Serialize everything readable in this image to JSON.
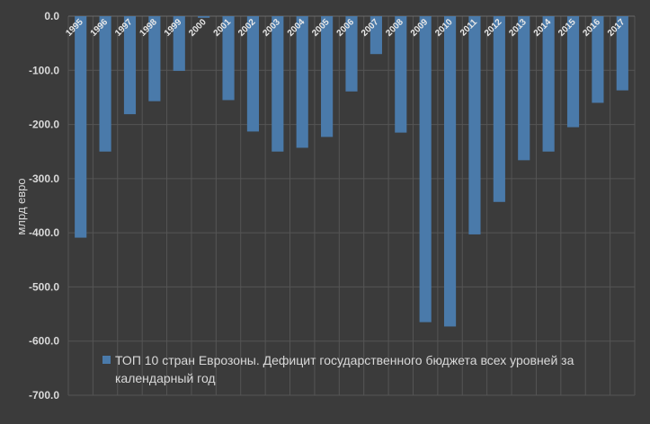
{
  "chart_data": {
    "type": "bar",
    "categories": [
      "1995",
      "1996",
      "1997",
      "1998",
      "1999",
      "2000",
      "2001",
      "2002",
      "2003",
      "2004",
      "2005",
      "2006",
      "2007",
      "2008",
      "2009",
      "2010",
      "2011",
      "2012",
      "2013",
      "2014",
      "2015",
      "2016",
      "2017"
    ],
    "series": [
      {
        "name": "ТОП 10 стран Еврозоны. Дефицит государственного бюджета всех уровней за календарный год",
        "values": [
          -409,
          -250,
          -181,
          -157,
          -101,
          -3,
          -155,
          -213,
          -250,
          -243,
          -223,
          -139,
          -70,
          -215,
          -565,
          -573,
          -403,
          -343,
          -266,
          -250,
          -205,
          -160,
          -137
        ],
        "color": "#4a7aaa"
      }
    ],
    "ylabel": "млрд евро",
    "ylim": [
      -700,
      0
    ],
    "yticks": [
      "0.0",
      "-100.0",
      "-200.0",
      "-300.0",
      "-400.0",
      "-500.0",
      "-600.0",
      "-700.0"
    ],
    "grid": true,
    "legend": {
      "position": "bottom-left",
      "lines": [
        "ТОП 10 стран Еврозоны. Дефицит государственного бюджета всех уровней за",
        "календарный год"
      ]
    }
  }
}
